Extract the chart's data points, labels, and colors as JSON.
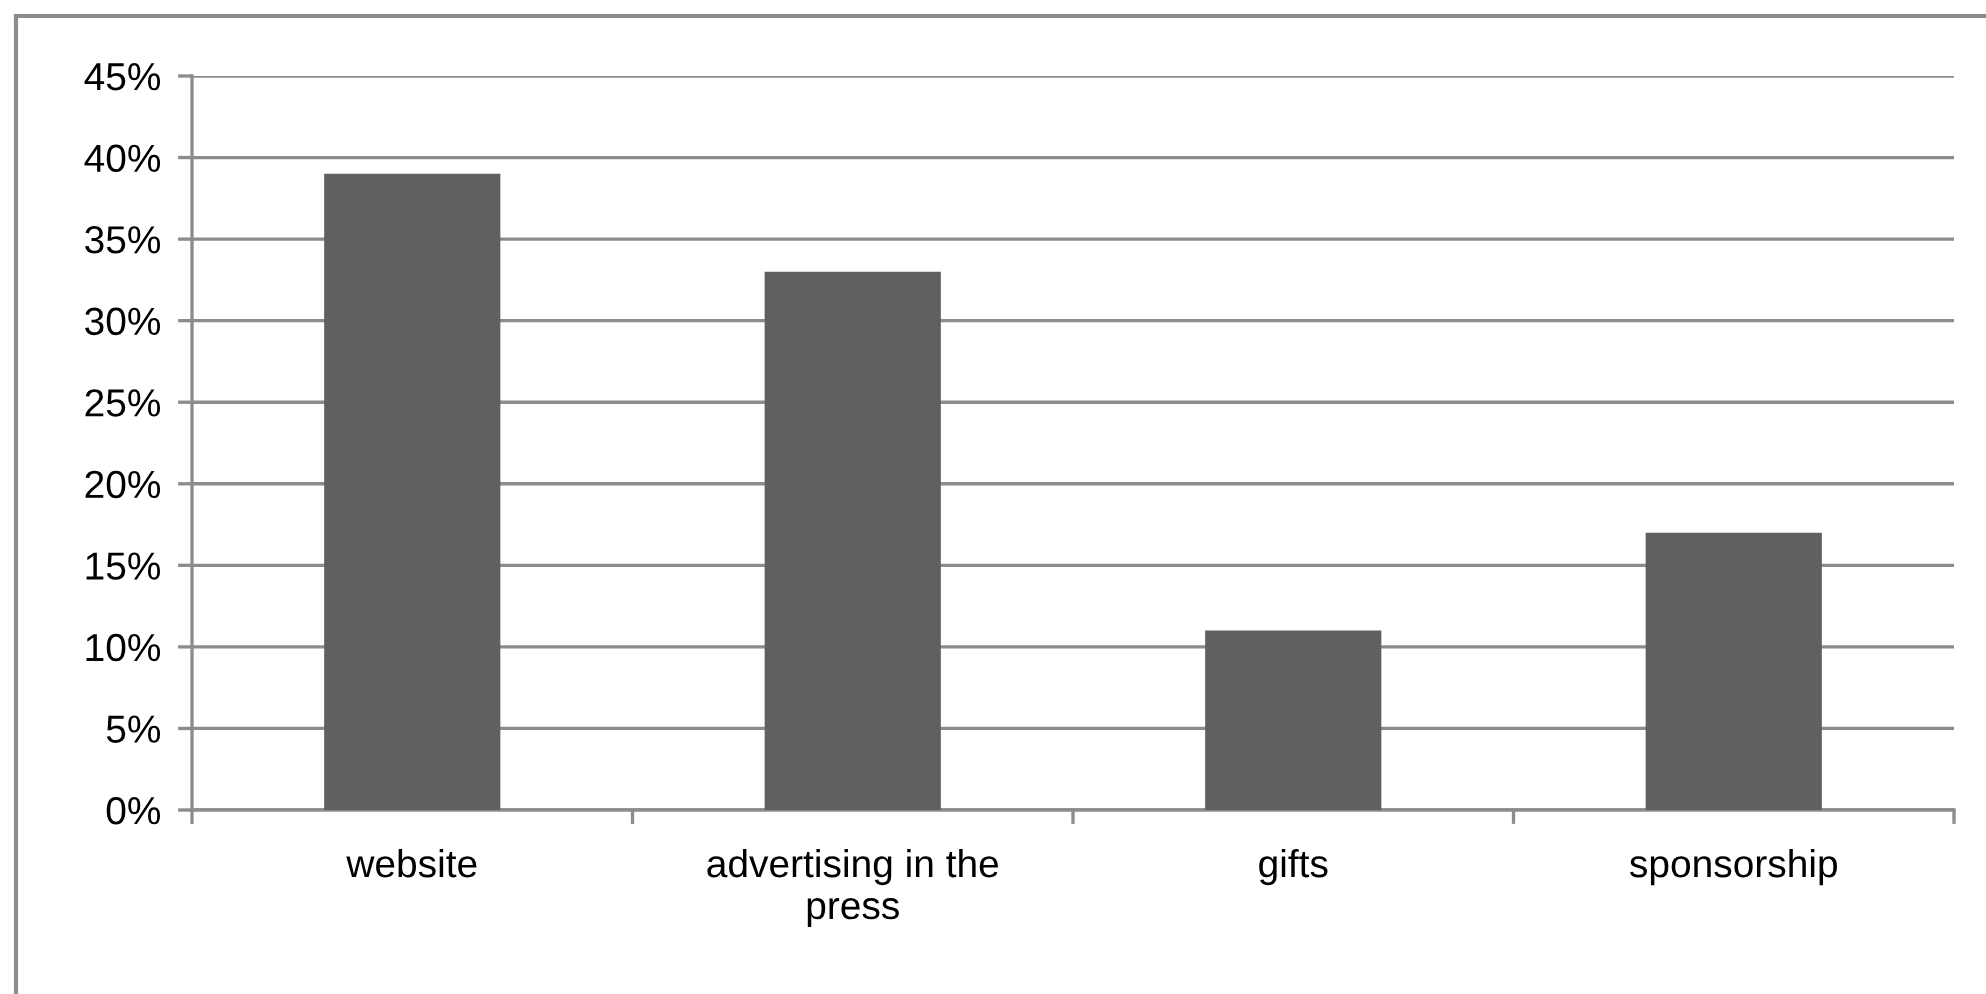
{
  "chart_data": {
    "type": "bar",
    "categories": [
      "website",
      "advertising in the press",
      "gifts",
      "sponsorship"
    ],
    "values": [
      39,
      33,
      11,
      17
    ],
    "color": "#606060",
    "ylim": [
      0,
      45
    ],
    "yticks": [
      {
        "value": 0,
        "label": "0%"
      },
      {
        "value": 5,
        "label": "5%"
      },
      {
        "value": 10,
        "label": "10%"
      },
      {
        "value": 15,
        "label": "15%"
      },
      {
        "value": 20,
        "label": "20%"
      },
      {
        "value": 25,
        "label": "25%"
      },
      {
        "value": 30,
        "label": "30%"
      },
      {
        "value": 35,
        "label": "35%"
      },
      {
        "value": 40,
        "label": "40%"
      },
      {
        "value": 45,
        "label": "45%"
      }
    ],
    "grid": "y"
  }
}
